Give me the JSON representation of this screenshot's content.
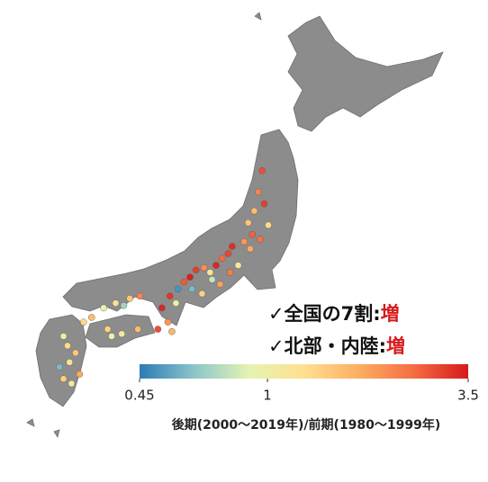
{
  "map": {
    "annotations": [
      {
        "label": "✓全国の7割",
        "sep": ":",
        "value": "増",
        "color": "#d7191c"
      },
      {
        "label": "✓北部・内陸",
        "sep": ":",
        "value": "増",
        "color": "#d7191c"
      }
    ],
    "colorbar": {
      "label": "後期(2000～2019年)/前期(1980～1999年)",
      "lim": [
        0.45,
        3.5
      ],
      "ticks": [
        0.45,
        1,
        3.5
      ],
      "log": true,
      "colors": [
        "#2c7bb6",
        "#8cc5c9",
        "#e6f3b2",
        "#fee090",
        "#fdae61",
        "#f46d43",
        "#d7191c"
      ]
    },
    "stations": [
      {
        "lon": 140.5,
        "lat": 40.6,
        "value": 2.8
      },
      {
        "lon": 140.3,
        "lat": 39.7,
        "value": 2.2
      },
      {
        "lon": 140.1,
        "lat": 38.9,
        "value": 1.6
      },
      {
        "lon": 140.8,
        "lat": 38.3,
        "value": 1.3
      },
      {
        "lon": 140.0,
        "lat": 37.9,
        "value": 2.6
      },
      {
        "lon": 139.6,
        "lat": 37.6,
        "value": 2.0
      },
      {
        "lon": 139.9,
        "lat": 37.3,
        "value": 1.8
      },
      {
        "lon": 140.4,
        "lat": 37.7,
        "value": 2.4
      },
      {
        "lon": 139.8,
        "lat": 38.4,
        "value": 1.5
      },
      {
        "lon": 140.6,
        "lat": 39.2,
        "value": 3.0
      },
      {
        "lon": 139.0,
        "lat": 37.4,
        "value": 3.2
      },
      {
        "lon": 138.8,
        "lat": 37.1,
        "value": 2.9
      },
      {
        "lon": 138.5,
        "lat": 36.9,
        "value": 2.5
      },
      {
        "lon": 138.2,
        "lat": 36.6,
        "value": 3.3
      },
      {
        "lon": 137.9,
        "lat": 36.3,
        "value": 1.2
      },
      {
        "lon": 138.0,
        "lat": 36.0,
        "value": 0.8
      },
      {
        "lon": 137.6,
        "lat": 36.5,
        "value": 2.1
      },
      {
        "lon": 137.2,
        "lat": 36.4,
        "value": 3.0
      },
      {
        "lon": 136.9,
        "lat": 36.1,
        "value": 3.4
      },
      {
        "lon": 136.6,
        "lat": 35.9,
        "value": 2.7
      },
      {
        "lon": 137.0,
        "lat": 35.6,
        "value": 0.6
      },
      {
        "lon": 137.5,
        "lat": 35.4,
        "value": 1.4
      },
      {
        "lon": 138.4,
        "lat": 35.8,
        "value": 1.9
      },
      {
        "lon": 138.9,
        "lat": 36.3,
        "value": 2.3
      },
      {
        "lon": 139.3,
        "lat": 36.6,
        "value": 1.1
      },
      {
        "lon": 136.3,
        "lat": 35.6,
        "value": 0.5
      },
      {
        "lon": 135.9,
        "lat": 35.3,
        "value": 3.1
      },
      {
        "lon": 136.2,
        "lat": 35.0,
        "value": 1.0
      },
      {
        "lon": 135.5,
        "lat": 34.8,
        "value": 3.3
      },
      {
        "lon": 135.8,
        "lat": 34.2,
        "value": 2.0
      },
      {
        "lon": 135.3,
        "lat": 33.9,
        "value": 2.8
      },
      {
        "lon": 136.0,
        "lat": 33.8,
        "value": 1.7
      },
      {
        "lon": 133.9,
        "lat": 35.2,
        "value": 1.5
      },
      {
        "lon": 134.4,
        "lat": 35.3,
        "value": 2.2
      },
      {
        "lon": 133.2,
        "lat": 35.0,
        "value": 1.2
      },
      {
        "lon": 132.6,
        "lat": 34.8,
        "value": 0.9
      },
      {
        "lon": 132.0,
        "lat": 34.4,
        "value": 1.6
      },
      {
        "lon": 131.6,
        "lat": 34.2,
        "value": 1.3
      },
      {
        "lon": 133.6,
        "lat": 34.9,
        "value": 0.7
      },
      {
        "lon": 133.5,
        "lat": 33.7,
        "value": 1.1
      },
      {
        "lon": 133.0,
        "lat": 33.6,
        "value": 0.9
      },
      {
        "lon": 132.8,
        "lat": 33.9,
        "value": 1.4
      },
      {
        "lon": 134.3,
        "lat": 33.9,
        "value": 1.6
      },
      {
        "lon": 130.6,
        "lat": 33.6,
        "value": 1.0
      },
      {
        "lon": 130.8,
        "lat": 33.2,
        "value": 1.3
      },
      {
        "lon": 131.2,
        "lat": 32.9,
        "value": 1.5
      },
      {
        "lon": 130.9,
        "lat": 32.5,
        "value": 1.2
      },
      {
        "lon": 131.4,
        "lat": 32.0,
        "value": 1.8
      },
      {
        "lon": 130.6,
        "lat": 31.8,
        "value": 1.4
      },
      {
        "lon": 130.4,
        "lat": 32.3,
        "value": 0.6
      },
      {
        "lon": 131.0,
        "lat": 31.6,
        "value": 1.1
      }
    ]
  }
}
